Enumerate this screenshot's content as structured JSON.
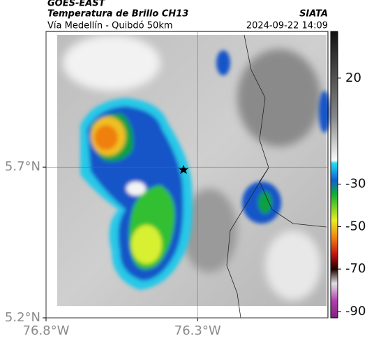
{
  "header": {
    "source": "GOES-EAST",
    "title": "Temperatura de Brillo CH13",
    "org": "SIATA",
    "subtitle": "Vía Medellín - Quibdó 50km",
    "datetime": "2024-09-22 14:09"
  },
  "map": {
    "xlim": [
      -76.8,
      -75.87
    ],
    "ylim": [
      5.2,
      6.15
    ],
    "xticks": [
      {
        "value": -76.8,
        "label": "76.8°W"
      },
      {
        "value": -76.3,
        "label": "76.3°W"
      }
    ],
    "yticks": [
      {
        "value": 5.7,
        "label": "5.7°N"
      },
      {
        "value": 5.2,
        "label": "5.2°N"
      }
    ],
    "grid": true
  },
  "colorbar": {
    "lim": [
      -93,
      42
    ],
    "ticks": [
      20,
      -30,
      -50,
      -70,
      -90
    ]
  }
}
